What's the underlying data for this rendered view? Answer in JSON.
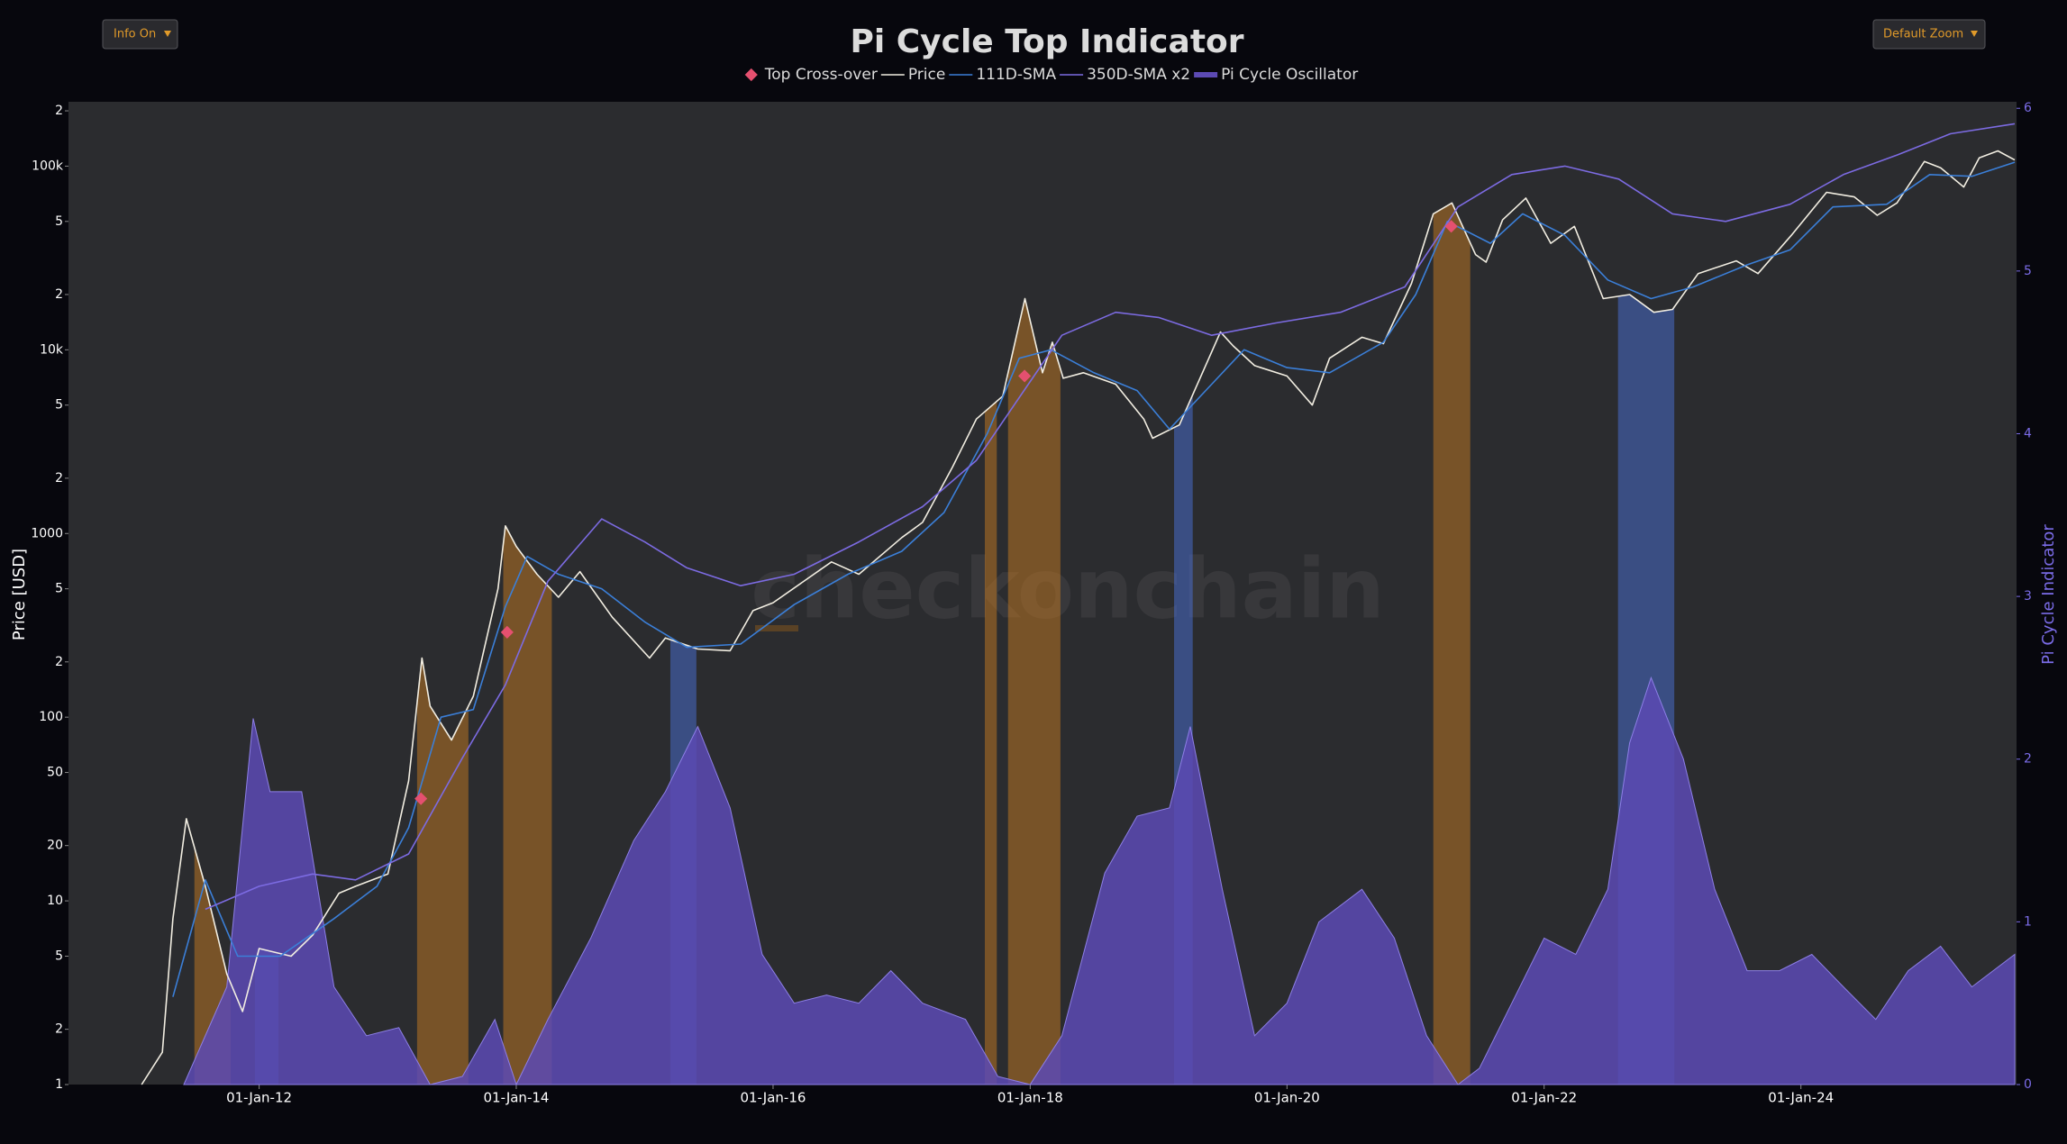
{
  "controls": [
    "Info On",
    "Default Zoom"
  ],
  "chart_data": {
    "type": "line",
    "title": "Pi Cycle Top Indicator",
    "watermark": "checkonchain",
    "ylabel": "Price [USD]",
    "y2label": "Pi Cycle Indicator",
    "log_scale": true,
    "xlim": [
      "2010-07-08",
      "2025-09-05"
    ],
    "xticks": [
      {
        "value": "2012-01-01",
        "label": "01-Jan-12"
      },
      {
        "value": "2014-01-01",
        "label": "01-Jan-14"
      },
      {
        "value": "2016-01-01",
        "label": "01-Jan-16"
      },
      {
        "value": "2018-01-01",
        "label": "01-Jan-18"
      },
      {
        "value": "2020-01-01",
        "label": "01-Jan-20"
      },
      {
        "value": "2022-01-01",
        "label": "01-Jan-22"
      },
      {
        "value": "2024-01-01",
        "label": "01-Jan-24"
      }
    ],
    "ylim": [
      1,
      224000
    ],
    "yticks": [
      1,
      2,
      5,
      10,
      20,
      50,
      100,
      {
        "value": 200,
        "label": "2"
      },
      {
        "value": 500,
        "label": "5"
      },
      1000,
      {
        "value": 2000,
        "label": "2"
      },
      {
        "value": 5000,
        "label": "5"
      },
      {
        "value": 10000,
        "label": "10k"
      },
      {
        "value": 20000,
        "label": "2"
      },
      {
        "value": 50000,
        "label": "5"
      },
      {
        "value": 100000,
        "label": "100k"
      },
      {
        "value": 200000,
        "label": "2"
      }
    ],
    "y2lim": [
      0,
      6.04
    ],
    "y2ticks": [
      0,
      1,
      2,
      3,
      4,
      5,
      6
    ],
    "shaded_regions": [
      {
        "start": "2011-07-01",
        "end": "2011-10-12",
        "color": "#c67a22"
      },
      {
        "start": "2011-12-20",
        "end": "2012-02-25",
        "color": "#4a6fd8"
      },
      {
        "start": "2013-03-25",
        "end": "2013-08-18",
        "color": "#c67a22"
      },
      {
        "start": "2013-11-25",
        "end": "2014-04-12",
        "color": "#c67a22"
      },
      {
        "start": "2015-03-15",
        "end": "2015-05-28",
        "color": "#4a6fd8"
      },
      {
        "start": "2017-08-25",
        "end": "2017-09-28",
        "color": "#c67a22"
      },
      {
        "start": "2017-10-30",
        "end": "2018-03-28",
        "color": "#c67a22"
      },
      {
        "start": "2019-02-14",
        "end": "2019-04-08",
        "color": "#4a6fd8"
      },
      {
        "start": "2021-02-20",
        "end": "2021-06-05",
        "color": "#c67a22"
      },
      {
        "start": "2022-07-30",
        "end": "2023-01-06",
        "color": "#4a6fd8"
      }
    ],
    "series": [
      {
        "name": "Top Cross-over",
        "type": "scatter",
        "color": "#e5506f",
        "x": [
          "2013-04-05",
          "2013-12-06",
          "2017-12-16",
          "2021-04-12"
        ],
        "values": [
          36,
          290,
          7200,
          47000
        ]
      },
      {
        "name": "Price",
        "type": "line",
        "color": "#f2eee2",
        "x": [
          "2011-02-01",
          "2011-04-01",
          "2011-05-01",
          "2011-06-08",
          "2011-08-01",
          "2011-10-01",
          "2011-11-15",
          "2012-01-01",
          "2012-04-01",
          "2012-06-01",
          "2012-08-15",
          "2012-10-01",
          "2013-01-01",
          "2013-03-01",
          "2013-04-08",
          "2013-05-01",
          "2013-07-01",
          "2013-09-01",
          "2013-11-10",
          "2013-12-01",
          "2014-01-01",
          "2014-03-01",
          "2014-05-01",
          "2014-07-01",
          "2014-10-01",
          "2015-01-15",
          "2015-03-01",
          "2015-06-01",
          "2015-09-01",
          "2015-11-05",
          "2016-01-01",
          "2016-06-15",
          "2016-09-01",
          "2017-01-01",
          "2017-03-01",
          "2017-05-25",
          "2017-08-01",
          "2017-10-15",
          "2017-12-17",
          "2018-02-05",
          "2018-03-05",
          "2018-04-05",
          "2018-06-01",
          "2018-09-01",
          "2018-11-20",
          "2018-12-15",
          "2019-03-01",
          "2019-06-26",
          "2019-08-01",
          "2019-10-01",
          "2020-01-01",
          "2020-03-13",
          "2020-05-01",
          "2020-08-01",
          "2020-10-01",
          "2020-12-20",
          "2021-02-20",
          "2021-04-14",
          "2021-06-20",
          "2021-07-20",
          "2021-09-05",
          "2021-11-10",
          "2022-01-20",
          "2022-03-28",
          "2022-06-18",
          "2022-09-01",
          "2022-11-09",
          "2023-01-01",
          "2023-03-15",
          "2023-07-01",
          "2023-09-01",
          "2023-12-05",
          "2024-03-14",
          "2024-06-01",
          "2024-08-05",
          "2024-09-30",
          "2024-12-17",
          "2025-02-01",
          "2025-04-08",
          "2025-05-22",
          "2025-07-14",
          "2025-08-31"
        ],
        "values": [
          1,
          1.5,
          8,
          28,
          12,
          4,
          2.5,
          5.5,
          5,
          6.5,
          11,
          12,
          14,
          45,
          210,
          115,
          75,
          130,
          500,
          1100,
          850,
          600,
          450,
          620,
          350,
          210,
          270,
          235,
          230,
          380,
          420,
          700,
          600,
          950,
          1150,
          2300,
          4200,
          5600,
          19000,
          7500,
          11000,
          7000,
          7500,
          6500,
          4200,
          3300,
          3900,
          12500,
          10500,
          8200,
          7200,
          5000,
          9000,
          11700,
          10800,
          23000,
          55000,
          63000,
          33000,
          30000,
          51000,
          67000,
          38000,
          47000,
          19000,
          20000,
          16000,
          16600,
          26000,
          30500,
          26000,
          42000,
          72000,
          68000,
          54000,
          63000,
          106000,
          98000,
          77000,
          111000,
          121000,
          108000
        ]
      },
      {
        "name": "111D-SMA",
        "type": "line",
        "color": "#3b7fd8",
        "x": [
          "2011-05-01",
          "2011-08-01",
          "2011-11-01",
          "2012-03-01",
          "2012-08-01",
          "2012-12-01",
          "2013-03-01",
          "2013-06-01",
          "2013-09-01",
          "2013-12-01",
          "2014-02-01",
          "2014-05-01",
          "2014-09-01",
          "2015-01-01",
          "2015-05-01",
          "2015-10-01",
          "2016-03-01",
          "2016-08-01",
          "2017-01-01",
          "2017-05-01",
          "2017-09-01",
          "2017-12-01",
          "2018-03-01",
          "2018-07-01",
          "2018-11-01",
          "2019-02-01",
          "2019-06-01",
          "2019-09-01",
          "2020-01-01",
          "2020-05-01",
          "2020-10-01",
          "2021-01-01",
          "2021-04-01",
          "2021-08-01",
          "2021-11-01",
          "2022-03-01",
          "2022-07-01",
          "2022-11-01",
          "2023-03-01",
          "2023-08-01",
          "2023-12-01",
          "2024-04-01",
          "2024-09-01",
          "2025-01-01",
          "2025-05-01",
          "2025-08-31"
        ],
        "values": [
          3,
          13,
          5,
          5,
          8,
          12,
          25,
          100,
          110,
          400,
          750,
          600,
          500,
          330,
          240,
          250,
          410,
          600,
          800,
          1300,
          3500,
          9000,
          10000,
          7500,
          6000,
          3700,
          6500,
          10000,
          8000,
          7500,
          11000,
          20000,
          50000,
          38000,
          55000,
          42000,
          24000,
          19000,
          22000,
          29000,
          35000,
          60000,
          62000,
          90000,
          88000,
          105000
        ]
      },
      {
        "name": "350D-SMA x2",
        "type": "line",
        "color": "#7c6be2",
        "x": [
          "2011-08-01",
          "2012-01-01",
          "2012-06-01",
          "2012-10-01",
          "2013-03-01",
          "2013-08-01",
          "2013-12-01",
          "2014-04-01",
          "2014-09-01",
          "2015-01-01",
          "2015-05-01",
          "2015-10-01",
          "2016-03-01",
          "2016-09-01",
          "2017-03-01",
          "2017-08-01",
          "2017-12-01",
          "2018-04-01",
          "2018-09-01",
          "2019-01-01",
          "2019-06-01",
          "2019-12-01",
          "2020-06-01",
          "2020-12-01",
          "2021-05-01",
          "2021-10-01",
          "2022-03-01",
          "2022-08-01",
          "2023-01-01",
          "2023-06-01",
          "2023-12-01",
          "2024-05-01",
          "2024-10-01",
          "2025-03-01",
          "2025-08-31"
        ],
        "values": [
          9,
          12,
          14,
          13,
          18,
          60,
          150,
          550,
          1200,
          900,
          650,
          520,
          600,
          900,
          1400,
          2500,
          5500,
          12000,
          16000,
          15000,
          12000,
          14000,
          16000,
          22000,
          60000,
          90000,
          100000,
          85000,
          55000,
          50000,
          62000,
          90000,
          115000,
          150000,
          170000
        ]
      },
      {
        "name": "Pi Cycle Oscillator",
        "type": "area",
        "axis": "y2",
        "color": "#5c4ab4",
        "x": [
          "2011-06-01",
          "2011-10-01",
          "2011-12-15",
          "2012-02-01",
          "2012-05-01",
          "2012-08-01",
          "2012-11-01",
          "2013-02-01",
          "2013-05-01",
          "2013-08-01",
          "2013-11-01",
          "2014-01-01",
          "2014-04-01",
          "2014-08-01",
          "2014-12-01",
          "2015-03-01",
          "2015-06-01",
          "2015-09-01",
          "2015-12-01",
          "2016-03-01",
          "2016-06-01",
          "2016-09-01",
          "2016-12-01",
          "2017-03-01",
          "2017-07-01",
          "2017-10-01",
          "2018-01-01",
          "2018-04-01",
          "2018-08-01",
          "2018-11-01",
          "2019-02-01",
          "2019-04-01",
          "2019-07-01",
          "2019-10-01",
          "2020-01-01",
          "2020-04-01",
          "2020-08-01",
          "2020-11-01",
          "2021-02-01",
          "2021-05-01",
          "2021-07-01",
          "2021-10-01",
          "2022-01-01",
          "2022-04-01",
          "2022-07-01",
          "2022-09-01",
          "2022-11-01",
          "2023-02-01",
          "2023-05-01",
          "2023-08-01",
          "2023-11-01",
          "2024-02-01",
          "2024-05-01",
          "2024-08-01",
          "2024-11-01",
          "2025-02-01",
          "2025-05-01",
          "2025-08-31"
        ],
        "values": [
          0,
          0.6,
          2.25,
          1.8,
          1.8,
          0.6,
          0.3,
          0.35,
          0,
          0.05,
          0.4,
          0,
          0.4,
          0.9,
          1.5,
          1.8,
          2.2,
          1.7,
          0.8,
          0.5,
          0.55,
          0.5,
          0.7,
          0.5,
          0.4,
          0.05,
          0,
          0.3,
          1.3,
          1.65,
          1.7,
          2.2,
          1.2,
          0.3,
          0.5,
          1,
          1.2,
          0.9,
          0.3,
          0,
          0.1,
          0.5,
          0.9,
          0.8,
          1.2,
          2.1,
          2.5,
          2,
          1.2,
          0.7,
          0.7,
          0.8,
          0.6,
          0.4,
          0.7,
          0.85,
          0.6,
          0.8
        ]
      }
    ]
  }
}
